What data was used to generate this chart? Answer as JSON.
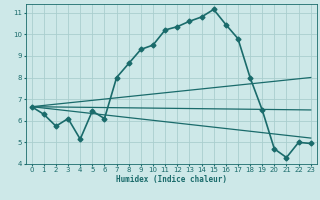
{
  "xlabel": "Humidex (Indice chaleur)",
  "xlim": [
    -0.5,
    23.5
  ],
  "ylim": [
    4,
    11.4
  ],
  "yticks": [
    4,
    5,
    6,
    7,
    8,
    9,
    10,
    11
  ],
  "xticks": [
    0,
    1,
    2,
    3,
    4,
    5,
    6,
    7,
    8,
    9,
    10,
    11,
    12,
    13,
    14,
    15,
    16,
    17,
    18,
    19,
    20,
    21,
    22,
    23
  ],
  "bg_color": "#cde8e8",
  "grid_color": "#aacece",
  "line_color": "#1a6b6b",
  "lines": [
    {
      "x": [
        0,
        1,
        2,
        3,
        4,
        5,
        6,
        7,
        8,
        9,
        10,
        11,
        12,
        13,
        14,
        15,
        16,
        17,
        18,
        19,
        20,
        21,
        22,
        23
      ],
      "y": [
        6.65,
        6.3,
        5.75,
        6.1,
        5.15,
        6.45,
        6.1,
        8.0,
        8.65,
        9.3,
        9.5,
        10.2,
        10.35,
        10.6,
        10.8,
        11.15,
        10.45,
        9.8,
        8.0,
        6.5,
        4.7,
        4.3,
        5.0,
        4.95
      ],
      "marker": "D",
      "markersize": 2.5,
      "linewidth": 1.2,
      "with_marker": true
    },
    {
      "x": [
        0,
        23
      ],
      "y": [
        6.65,
        8.0
      ],
      "marker": null,
      "markersize": 0,
      "linewidth": 0.9,
      "with_marker": false
    },
    {
      "x": [
        0,
        23
      ],
      "y": [
        6.65,
        6.5
      ],
      "marker": null,
      "markersize": 0,
      "linewidth": 0.9,
      "with_marker": false
    },
    {
      "x": [
        0,
        23
      ],
      "y": [
        6.65,
        5.2
      ],
      "marker": null,
      "markersize": 0,
      "linewidth": 0.9,
      "with_marker": false
    }
  ]
}
